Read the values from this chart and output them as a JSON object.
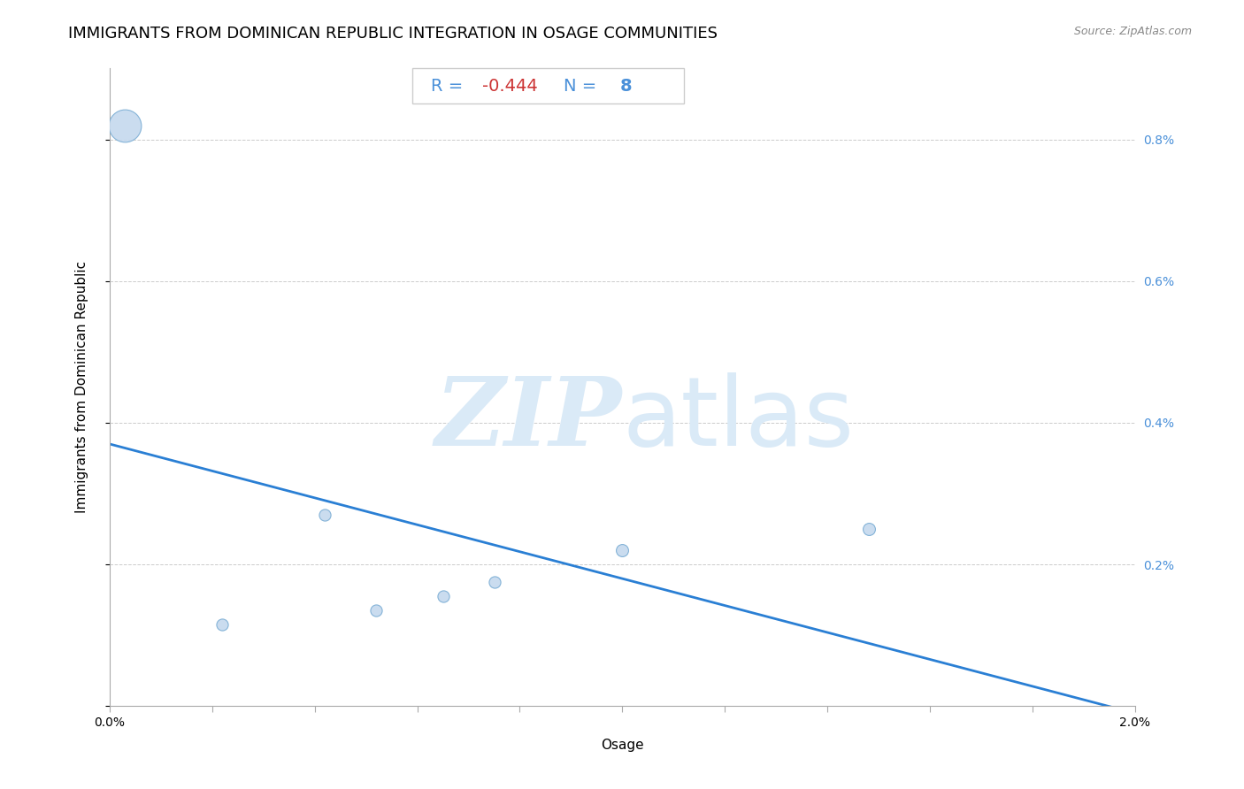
{
  "title": "IMMIGRANTS FROM DOMINICAN REPUBLIC INTEGRATION IN OSAGE COMMUNITIES",
  "source": "Source: ZipAtlas.com",
  "xlabel": "Osage",
  "ylabel": "Immigrants from Dominican Republic",
  "R": -0.444,
  "N": 8,
  "scatter_x": [
    0.0003,
    0.0022,
    0.0042,
    0.0052,
    0.0065,
    0.0075,
    0.01,
    0.0148
  ],
  "scatter_y": [
    0.0082,
    0.00115,
    0.0027,
    0.00135,
    0.00155,
    0.00175,
    0.0022,
    0.0025
  ],
  "point_sizes": [
    700,
    90,
    90,
    90,
    90,
    90,
    100,
    100
  ],
  "scatter_color": "#c5d9ee",
  "scatter_edge_color": "#7aadd4",
  "line_color": "#2a7fd4",
  "regression_x_start": 0.0,
  "regression_x_end": 0.02,
  "regression_y_start": 0.0037,
  "regression_y_end": -0.0001,
  "xlim": [
    0.0,
    0.02
  ],
  "ylim": [
    0.0,
    0.009
  ],
  "yticks": [
    0.0,
    0.002,
    0.004,
    0.006,
    0.008
  ],
  "ytick_labels_right": [
    "",
    "0.2%",
    "0.4%",
    "0.6%",
    "0.8%"
  ],
  "xtick_positions": [
    0.0,
    0.002,
    0.004,
    0.006,
    0.008,
    0.01,
    0.012,
    0.014,
    0.016,
    0.018,
    0.02
  ],
  "xtick_labels": [
    "0.0%",
    "",
    "",
    "",
    "",
    "",
    "",
    "",
    "",
    "",
    "2.0%"
  ],
  "grid_color": "#cccccc",
  "background_color": "#ffffff",
  "watermark_color": "#daeaf7",
  "title_fontsize": 13,
  "axis_label_fontsize": 11,
  "tick_fontsize": 10,
  "annotation_fontsize": 14,
  "right_tick_color": "#4a90d9",
  "annotation_r_color": "#cc3333",
  "annotation_n_color": "#4a90d9"
}
